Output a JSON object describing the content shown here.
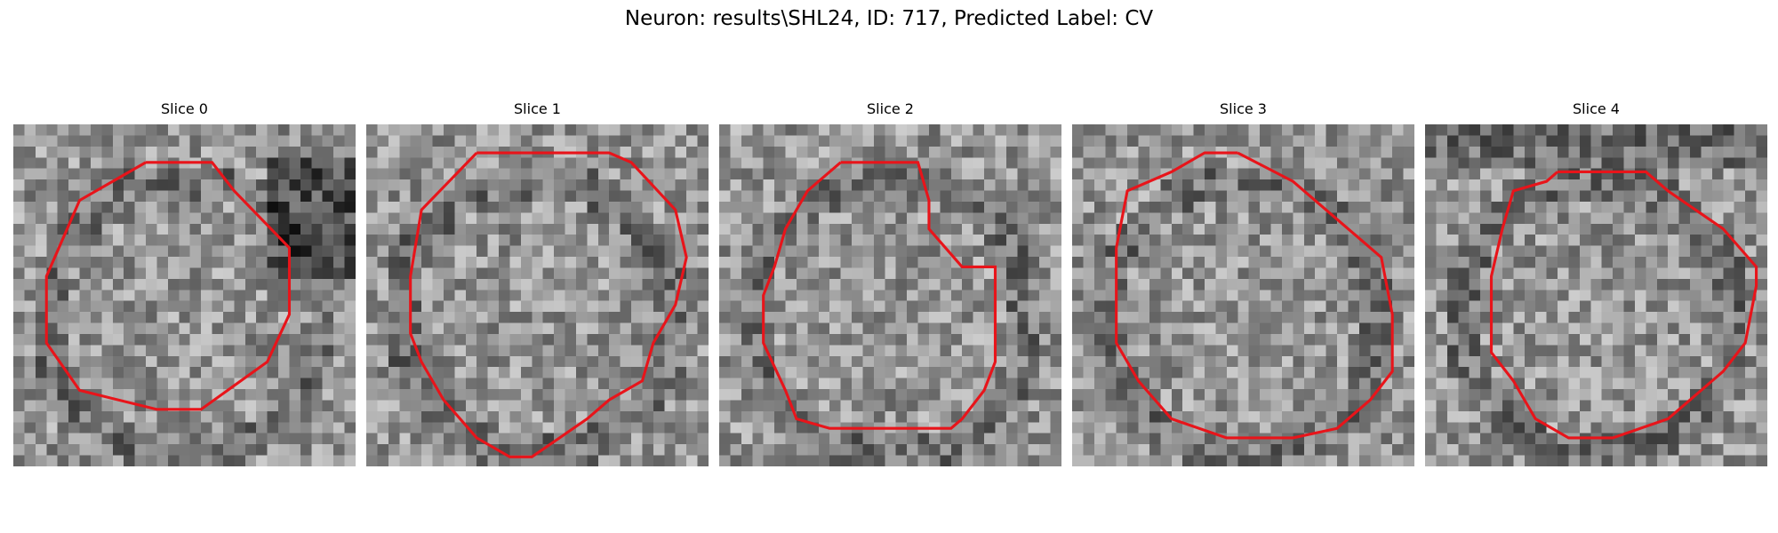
{
  "figure": {
    "title": "Neuron: results\\SHL24, ID: 717, Predicted Label: CV"
  },
  "panels": [
    {
      "title": "Slice 0",
      "seed": 17,
      "grid": 31,
      "outline_color": "#e8141a",
      "contour": [
        [
          12,
          4
        ],
        [
          6,
          8
        ],
        [
          3,
          16
        ],
        [
          3,
          23
        ],
        [
          6,
          28
        ],
        [
          13,
          30
        ],
        [
          17,
          30
        ],
        [
          23,
          25
        ],
        [
          25,
          20
        ],
        [
          25,
          13
        ],
        [
          20,
          7
        ],
        [
          18,
          4
        ]
      ]
    },
    {
      "title": "Slice 1",
      "seed": 29,
      "grid": 31,
      "outline_color": "#e8141a",
      "contour": [
        [
          10,
          3
        ],
        [
          5,
          9
        ],
        [
          4,
          16
        ],
        [
          4,
          22
        ],
        [
          5,
          25
        ],
        [
          7,
          29
        ],
        [
          10,
          33
        ],
        [
          13,
          35
        ],
        [
          15,
          35
        ],
        [
          20,
          31
        ],
        [
          22,
          29
        ],
        [
          25,
          27
        ],
        [
          26,
          23
        ],
        [
          28,
          19
        ],
        [
          29,
          14
        ],
        [
          28,
          9
        ],
        [
          24,
          4
        ],
        [
          22,
          3
        ]
      ]
    },
    {
      "title": "Slice 2",
      "seed": 41,
      "grid": 31,
      "outline_color": "#e8141a",
      "contour": [
        [
          11,
          4
        ],
        [
          18,
          4
        ],
        [
          19,
          8
        ],
        [
          19,
          11
        ],
        [
          22,
          15
        ],
        [
          25,
          15
        ],
        [
          25,
          20
        ],
        [
          25,
          25
        ],
        [
          24,
          28
        ],
        [
          22,
          31
        ],
        [
          21,
          32
        ],
        [
          19,
          32
        ],
        [
          10,
          32
        ],
        [
          7,
          31
        ],
        [
          6,
          28
        ],
        [
          4,
          23
        ],
        [
          4,
          18
        ],
        [
          5,
          15
        ],
        [
          6,
          11
        ],
        [
          8,
          7
        ]
      ]
    },
    {
      "title": "Slice 3",
      "seed": 53,
      "grid": 31,
      "outline_color": "#e8141a",
      "contour": [
        [
          15,
          3
        ],
        [
          20,
          6
        ],
        [
          24,
          10
        ],
        [
          28,
          14
        ],
        [
          29,
          20
        ],
        [
          29,
          26
        ],
        [
          27,
          29
        ],
        [
          24,
          32
        ],
        [
          20,
          33
        ],
        [
          14,
          33
        ],
        [
          9,
          31
        ],
        [
          6,
          27
        ],
        [
          4,
          23
        ],
        [
          4,
          13
        ],
        [
          5,
          7
        ],
        [
          9,
          5
        ],
        [
          12,
          3
        ]
      ]
    },
    {
      "title": "Slice 4",
      "seed": 67,
      "grid": 31,
      "outline_color": "#e8141a",
      "contour": [
        [
          12,
          5
        ],
        [
          20,
          5
        ],
        [
          22,
          7
        ],
        [
          27,
          11
        ],
        [
          30,
          15
        ],
        [
          30,
          17
        ],
        [
          29,
          23
        ],
        [
          27,
          26
        ],
        [
          22,
          31
        ],
        [
          17,
          33
        ],
        [
          13,
          33
        ],
        [
          10,
          31
        ],
        [
          8,
          27
        ],
        [
          6,
          24
        ],
        [
          6,
          16
        ],
        [
          7,
          11
        ],
        [
          8,
          7
        ],
        [
          11,
          6
        ]
      ]
    }
  ]
}
